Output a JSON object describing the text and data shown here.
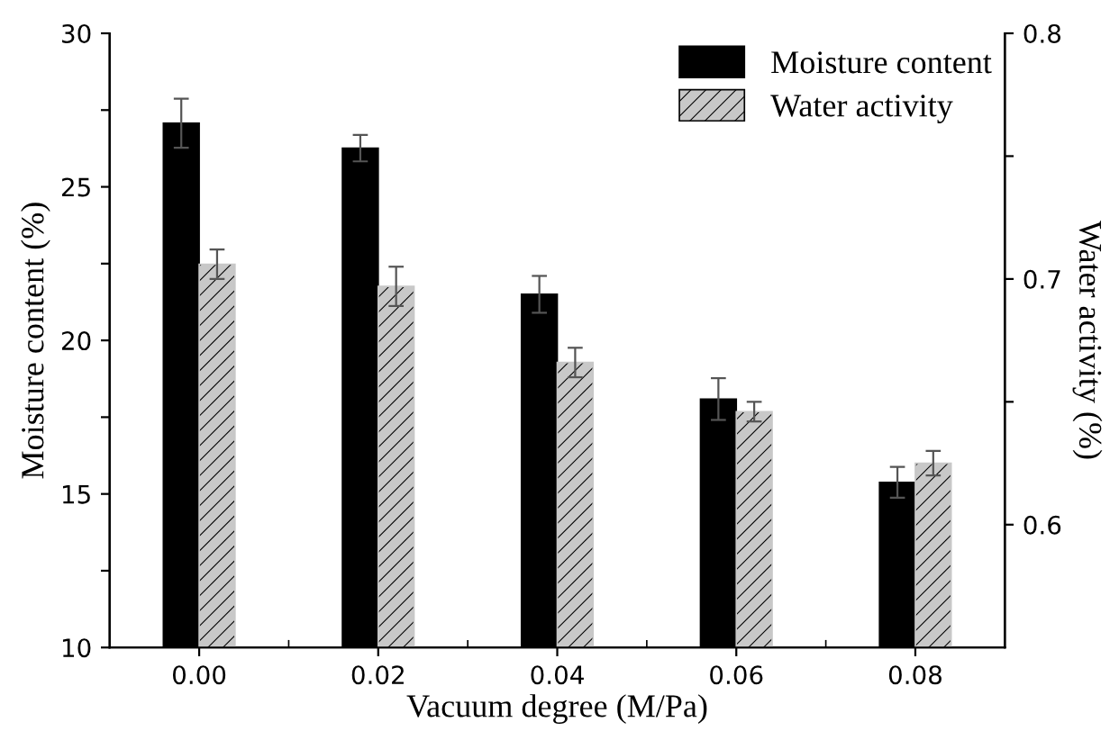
{
  "chart_data": {
    "type": "bar",
    "xlabel": "Vacuum degree (M/Pa)",
    "ylabel": "Moisture content (%)",
    "y2label": "Water activity (%)",
    "categories": [
      "0.00",
      "0.02",
      "0.04",
      "0.06",
      "0.08"
    ],
    "series": [
      {
        "name": "Moisture content",
        "color": "#000000",
        "values": [
          27.07,
          26.26,
          21.5,
          18.09,
          15.38
        ],
        "errors": [
          0.8,
          0.43,
          0.6,
          0.68,
          0.5
        ]
      },
      {
        "name": "Water activity",
        "color": "#c8c8c8",
        "axis": "y2",
        "values": [
          0.706,
          0.697,
          0.666,
          0.646,
          0.625
        ],
        "errors": [
          0.006,
          0.008,
          0.006,
          0.004,
          0.005
        ]
      }
    ],
    "ylim": [
      10,
      30
    ],
    "yticks": [
      10,
      {
        "value": 12.5,
        "label": null
      },
      15,
      {
        "value": 17.5,
        "label": null
      },
      20,
      {
        "value": 22.5,
        "label": null
      },
      25,
      {
        "value": 27.5,
        "label": null
      },
      30
    ],
    "y2lim": [
      0.55,
      0.8
    ],
    "y2ticks": [
      {
        "value": 0.6,
        "label": "0.6"
      },
      {
        "value": 0.65,
        "label": null
      },
      {
        "value": 0.7,
        "label": "0.7"
      },
      {
        "value": 0.75,
        "label": null
      },
      {
        "value": 0.8,
        "label": "0.8"
      }
    ],
    "legend": "top right",
    "grid": false
  }
}
